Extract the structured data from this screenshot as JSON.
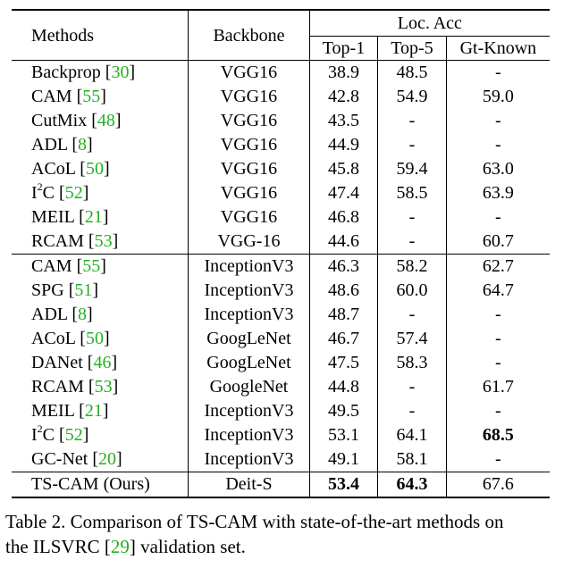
{
  "table": {
    "header": {
      "methods": "Methods",
      "backbone": "Backbone",
      "loc_acc": "Loc. Acc",
      "top1": "Top-1",
      "top5": "Top-5",
      "gt_known": "Gt-Known"
    },
    "rows": [
      {
        "name": "Backprop",
        "sup": "",
        "ref": "30",
        "backbone": "VGG16",
        "top1": "38.9",
        "top5": "48.5",
        "gt": "-"
      },
      {
        "name": "CAM",
        "sup": "",
        "ref": "55",
        "backbone": "VGG16",
        "top1": "42.8",
        "top5": "54.9",
        "gt": "59.0"
      },
      {
        "name": "CutMix",
        "sup": "",
        "ref": "48",
        "backbone": "VGG16",
        "top1": "43.5",
        "top5": "-",
        "gt": "-"
      },
      {
        "name": "ADL",
        "sup": "",
        "ref": "8",
        "backbone": "VGG16",
        "top1": "44.9",
        "top5": "-",
        "gt": "-"
      },
      {
        "name": "ACoL",
        "sup": "",
        "ref": "50",
        "backbone": "VGG16",
        "top1": "45.8",
        "top5": "59.4",
        "gt": "63.0"
      },
      {
        "name": "I",
        "sup": "2",
        "name_suffix": "C",
        "ref": "52",
        "backbone": "VGG16",
        "top1": "47.4",
        "top5": "58.5",
        "gt": "63.9"
      },
      {
        "name": "MEIL",
        "sup": "",
        "ref": "21",
        "backbone": "VGG16",
        "top1": "46.8",
        "top5": "-",
        "gt": "-"
      },
      {
        "name": "RCAM ",
        "sup": "",
        "ref": "53",
        "backbone": "VGG-16",
        "top1": "44.6",
        "top5": "-",
        "gt": "60.7"
      },
      {
        "name": "CAM",
        "sup": "",
        "ref": "55",
        "backbone": "InceptionV3",
        "top1": "46.3",
        "top5": "58.2",
        "gt": "62.7"
      },
      {
        "name": "SPG",
        "sup": "",
        "ref": "51",
        "backbone": "InceptionV3",
        "top1": "48.6",
        "top5": "60.0",
        "gt": "64.7"
      },
      {
        "name": "ADL",
        "sup": "",
        "ref": "8",
        "backbone": "InceptionV3",
        "top1": "48.7",
        "top5": "-",
        "gt": "-"
      },
      {
        "name": "ACoL",
        "sup": "",
        "ref": "50",
        "backbone": "GoogLeNet",
        "top1": "46.7",
        "top5": "57.4",
        "gt": "-"
      },
      {
        "name": "DANet",
        "sup": "",
        "ref": "46",
        "backbone": "GoogLeNet",
        "top1": "47.5",
        "top5": "58.3",
        "gt": "-"
      },
      {
        "name": "RCAM ",
        "sup": "",
        "ref": "53",
        "backbone": "GoogleNet",
        "top1": "44.8",
        "top5": "-",
        "gt": "61.7"
      },
      {
        "name": "MEIL",
        "sup": "",
        "ref": "21",
        "backbone": "InceptionV3",
        "top1": "49.5",
        "top5": "-",
        "gt": "-"
      },
      {
        "name": "I",
        "sup": "2",
        "name_suffix": "C",
        "ref": "52",
        "backbone": "InceptionV3",
        "top1": "53.1",
        "top5": "64.1",
        "gt": "68.5"
      },
      {
        "name": "GC-Net",
        "sup": "",
        "ref": "20",
        "backbone": "InceptionV3",
        "top1": "49.1",
        "top5": "58.1",
        "gt": "-"
      },
      {
        "name": "TS-CAM (Ours)",
        "sup": "",
        "ref": "",
        "backbone": "Deit-S",
        "top1": "53.4",
        "top5": "64.3",
        "gt": "67.6"
      }
    ]
  },
  "caption": {
    "line1": "Table 2. Comparison of TS-CAM with state-of-the-art methods on",
    "line2_pre": "the ILSVRC [",
    "line2_ref": "29",
    "line2_post": "] validation set."
  }
}
